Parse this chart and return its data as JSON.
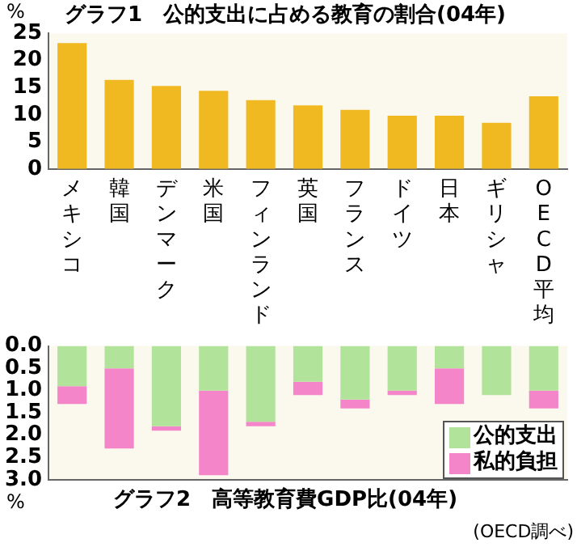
{
  "chart_data": [
    {
      "type": "bar",
      "title": "グラフ1　公的支出に占める教育の割合(04年)",
      "ylabel": "%",
      "categories": [
        "メキシコ",
        "韓国",
        "デンマーク",
        "米国",
        "フィンランド",
        "英国",
        "フランス",
        "ドイツ",
        "日本",
        "ギリシャ",
        "OECD平均"
      ],
      "values": [
        23.2,
        16.4,
        15.3,
        14.4,
        12.7,
        11.7,
        10.9,
        9.8,
        9.8,
        8.5,
        13.4
      ],
      "color": "#f0b922",
      "ylim": [
        0,
        25
      ],
      "yticks": [
        0,
        5,
        10,
        15,
        20,
        25
      ],
      "grid": false,
      "legend": false
    },
    {
      "type": "bar",
      "title": "グラフ2　高等教育費GDP比(04年)",
      "ylabel": "%",
      "annotations": [
        "(OECD調べ)"
      ],
      "categories": [
        "メキシコ",
        "韓国",
        "デンマーク",
        "米国",
        "フィンランド",
        "英国",
        "フランス",
        "ドイツ",
        "日本",
        "ギリシャ",
        "OECD平均"
      ],
      "stacked": true,
      "tick_labels": "y",
      "legend": "bottom right",
      "ylim": [
        3.0,
        0.0
      ],
      "yticks": [
        {
          "value": 0,
          "label": "0.0"
        },
        {
          "value": 0.5,
          "label": "0.5"
        },
        {
          "value": 1,
          "label": "1.0"
        },
        {
          "value": 1.5,
          "label": "1.5"
        },
        {
          "value": 2,
          "label": "2.0"
        },
        {
          "value": 2.5,
          "label": "2.5"
        },
        {
          "value": 3,
          "label": "3.0"
        }
      ],
      "grid": false,
      "series": [
        {
          "name": "公的支出",
          "color": "#b2e39b",
          "values": [
            0.9,
            0.5,
            1.8,
            1.0,
            1.7,
            0.8,
            1.2,
            1.0,
            0.5,
            1.1,
            1.0
          ]
        },
        {
          "name": "私的負担",
          "color": "#f485c9",
          "values": [
            0.4,
            1.8,
            0.1,
            1.9,
            0.1,
            0.3,
            0.2,
            0.1,
            0.8,
            0.0,
            0.4
          ]
        }
      ]
    }
  ]
}
